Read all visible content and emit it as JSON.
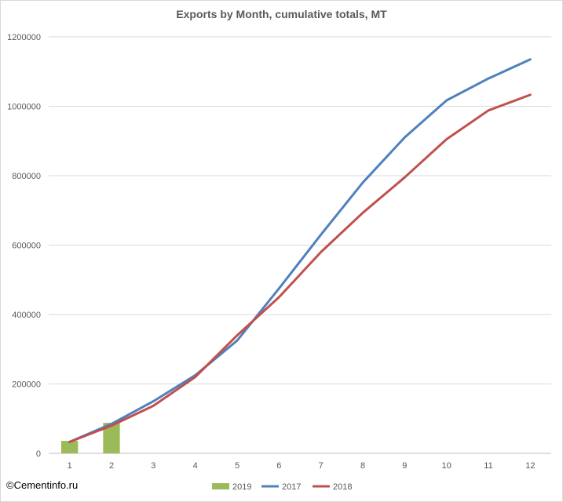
{
  "watermark": "©Cementinfo.ru",
  "chart_data": {
    "type": "line",
    "title": "Exports by Month, cumulative totals, MT",
    "xlabel": "",
    "ylabel": "",
    "categories": [
      "1",
      "2",
      "3",
      "4",
      "5",
      "6",
      "7",
      "8",
      "9",
      "10",
      "11",
      "12"
    ],
    "y_ticks": [
      "0",
      "200000",
      "400000",
      "600000",
      "800000",
      "1000000",
      "1200000"
    ],
    "ylim": [
      0,
      1200000
    ],
    "grid": "horizontal",
    "legend_position": "bottom",
    "series": [
      {
        "name": "2019",
        "kind": "bar",
        "color": "#9bbb59",
        "values": [
          36000,
          88000,
          null,
          null,
          null,
          null,
          null,
          null,
          null,
          null,
          null,
          null
        ]
      },
      {
        "name": "2017",
        "kind": "line",
        "color": "#4f81bd",
        "values": [
          33000,
          85000,
          150000,
          225000,
          325000,
          475000,
          630000,
          780000,
          910000,
          1017000,
          1080000,
          1135000
        ]
      },
      {
        "name": "2018",
        "kind": "line",
        "color": "#c0504d",
        "values": [
          33000,
          80000,
          137000,
          220000,
          340000,
          450000,
          580000,
          693000,
          795000,
          905000,
          988000,
          1033000
        ]
      }
    ]
  }
}
